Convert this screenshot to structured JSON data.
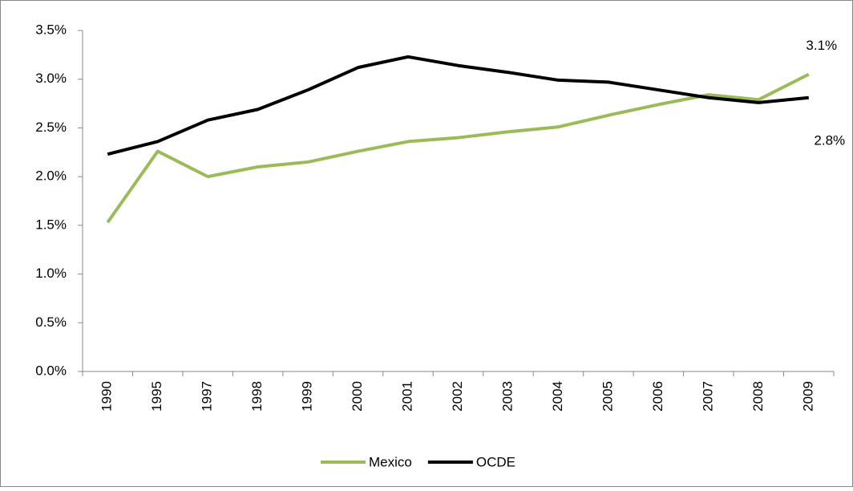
{
  "chart_data": {
    "type": "line",
    "categories": [
      "1990",
      "1995",
      "1997",
      "1998",
      "1999",
      "2000",
      "2001",
      "2002",
      "2003",
      "2004",
      "2005",
      "2006",
      "2007",
      "2008",
      "2009"
    ],
    "series": [
      {
        "name": "Mexico",
        "color": "#9bbb59",
        "values": [
          1.53,
          2.26,
          2.0,
          2.1,
          2.15,
          2.26,
          2.36,
          2.4,
          2.46,
          2.51,
          2.63,
          2.74,
          2.84,
          2.79,
          3.05
        ],
        "value_labels": [
          null,
          null,
          null,
          null,
          null,
          null,
          null,
          null,
          null,
          null,
          null,
          null,
          null,
          null,
          "3.1%"
        ]
      },
      {
        "name": "OCDE",
        "color": "#000000",
        "values": [
          2.23,
          2.36,
          2.58,
          2.69,
          2.89,
          3.12,
          3.23,
          3.14,
          3.07,
          2.99,
          2.97,
          2.89,
          2.81,
          2.76,
          2.81
        ],
        "value_labels": [
          null,
          null,
          null,
          null,
          null,
          null,
          null,
          null,
          null,
          null,
          null,
          null,
          null,
          null,
          "2.8%"
        ]
      }
    ],
    "ylim": [
      0,
      3.5
    ],
    "yticks": [
      {
        "value": 0,
        "label": "0.0%"
      },
      {
        "value": 0.5,
        "label": "0.5%"
      },
      {
        "value": 1,
        "label": "1.0%"
      },
      {
        "value": 1.5,
        "label": "1.5%"
      },
      {
        "value": 2,
        "label": "2.0%"
      },
      {
        "value": 2.5,
        "label": "2.5%"
      },
      {
        "value": 3,
        "label": "3.0%"
      },
      {
        "value": 3.5,
        "label": "3.5%"
      }
    ],
    "grid": false,
    "legend": "bottom"
  }
}
